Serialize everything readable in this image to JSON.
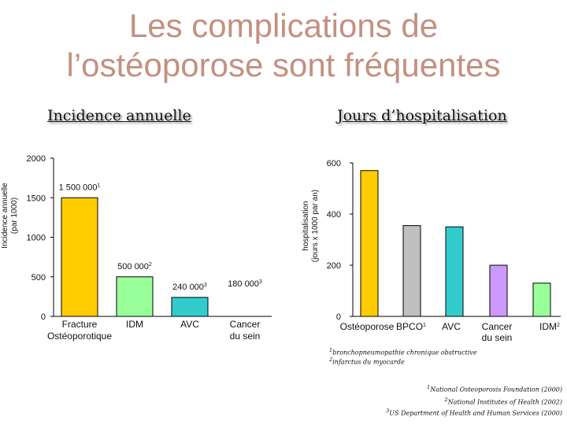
{
  "title_line1": "Les complications de",
  "title_line2": "l’ostéoporose sont fréquentes",
  "colors": {
    "title": "#c49080"
  },
  "chart_data": [
    {
      "type": "bar",
      "title": "Incidence annuelle",
      "ylabel_line1": "Incidence annuelle",
      "ylabel_line2": "(par 1000)",
      "ylim": [
        0,
        2000
      ],
      "yticks": [
        0,
        500,
        1000,
        1500,
        2000
      ],
      "categories": [
        {
          "l1": "Fracture",
          "l2": "Ostéoporotique"
        },
        {
          "l1": "IDM",
          "l2": ""
        },
        {
          "l1": "AVC",
          "l2": ""
        },
        {
          "l1": "Cancer",
          "l2": "du sein"
        }
      ],
      "values": [
        1500,
        500,
        240,
        180
      ],
      "data_labels": [
        {
          "text": "1 500 000",
          "sup": "1"
        },
        {
          "text": "500 000",
          "sup": "2"
        },
        {
          "text": "240 000",
          "sup": "3"
        },
        {
          "text": "180 000",
          "sup": "3"
        }
      ],
      "colors": [
        "#ffcc00",
        "#99ff99",
        "#33cccc",
        ""
      ]
    },
    {
      "type": "bar",
      "title": "Jours d’hospitalisation",
      "ylabel_line1": "hospitalisation",
      "ylabel_line2": "(jours x 1000 par an)",
      "ylim": [
        0,
        600
      ],
      "yticks": [
        0,
        200,
        400,
        600
      ],
      "categories": [
        {
          "l1": "Ostéoporose",
          "l2": "",
          "sup": ""
        },
        {
          "l1": "BPCO",
          "l2": "",
          "sup": "1"
        },
        {
          "l1": "AVC",
          "l2": "",
          "sup": ""
        },
        {
          "l1": "Cancer",
          "l2": "du sein",
          "sup": ""
        },
        {
          "l1": "IDM",
          "l2": "",
          "sup": "2"
        }
      ],
      "values": [
        570,
        355,
        350,
        200,
        130
      ],
      "colors": [
        "#ffcc00",
        "#c0c0c0",
        "#33cccc",
        "#cc99ff",
        "#99ff99"
      ]
    }
  ],
  "footnotes_small": [
    {
      "sup": "1",
      "text": "bronchopneumopathie chronique obstructive"
    },
    {
      "sup": "2",
      "text": "infarctus du myocarde"
    }
  ],
  "sources": [
    {
      "sup": "1",
      "text": "National Osteoporosis Foundation (2000)"
    },
    {
      "sup": "2",
      "text": "National Institutes of Health (2002)"
    },
    {
      "sup": "3",
      "text": "US Department of Health and Human Services (2000)"
    }
  ]
}
